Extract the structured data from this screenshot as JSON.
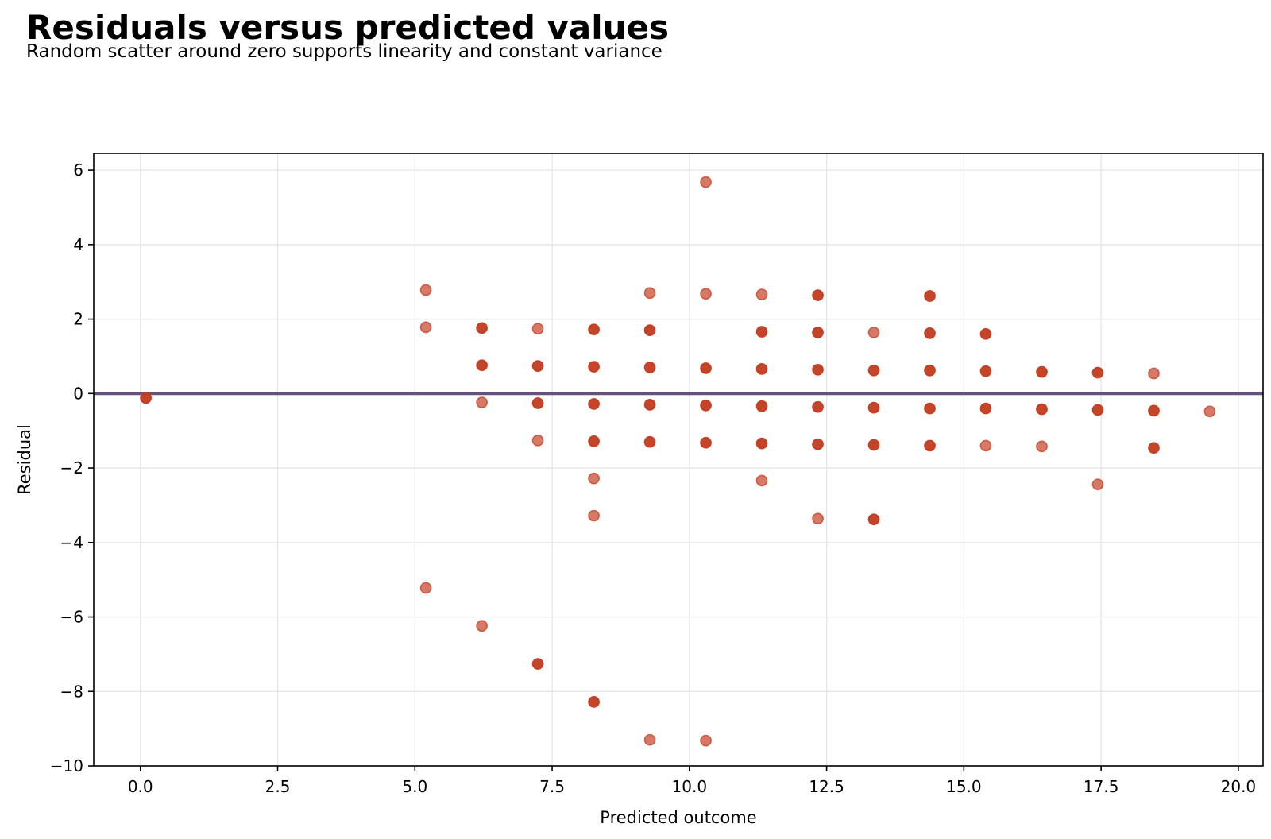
{
  "title": "Residuals versus predicted values",
  "subtitle": "Random scatter around zero supports linearity and constant variance",
  "colors": {
    "point": "#c23b1f",
    "reference_line": "#66507e",
    "grid": "#e5e5e5",
    "axes": "#000000"
  },
  "chart_data": {
    "type": "scatter",
    "xlabel": "Predicted outcome",
    "ylabel": "Residual",
    "xlim": [
      -0.85,
      20.45
    ],
    "ylim": [
      -10.0,
      6.45
    ],
    "x_ticks": [
      0.0,
      2.5,
      5.0,
      7.5,
      10.0,
      12.5,
      15.0,
      17.5,
      20.0
    ],
    "x_tick_labels": [
      "0.0",
      "2.5",
      "5.0",
      "7.5",
      "10.0",
      "12.5",
      "15.0",
      "17.5",
      "20.0"
    ],
    "y_ticks": [
      -10,
      -8,
      -6,
      -4,
      -2,
      0,
      2,
      4,
      6
    ],
    "y_tick_labels": [
      "−10",
      "−8",
      "−6",
      "−4",
      "−2",
      "0",
      "2",
      "4",
      "6"
    ],
    "grid": true,
    "reference_line": {
      "y": 0
    },
    "points": [
      {
        "x": 0.1,
        "y": -0.12,
        "heavy": true
      },
      {
        "x": 5.2,
        "y": 2.78,
        "heavy": false
      },
      {
        "x": 5.2,
        "y": 1.78,
        "heavy": false
      },
      {
        "x": 5.2,
        "y": -5.22,
        "heavy": false
      },
      {
        "x": 6.22,
        "y": 1.76,
        "heavy": true
      },
      {
        "x": 6.22,
        "y": 0.76,
        "heavy": true
      },
      {
        "x": 6.22,
        "y": -0.24,
        "heavy": false
      },
      {
        "x": 6.22,
        "y": -6.24,
        "heavy": false
      },
      {
        "x": 7.24,
        "y": 1.74,
        "heavy": false
      },
      {
        "x": 7.24,
        "y": 0.74,
        "heavy": true
      },
      {
        "x": 7.24,
        "y": -0.26,
        "heavy": true
      },
      {
        "x": 7.24,
        "y": -1.26,
        "heavy": false
      },
      {
        "x": 7.24,
        "y": -7.26,
        "heavy": true
      },
      {
        "x": 8.26,
        "y": 1.72,
        "heavy": true
      },
      {
        "x": 8.26,
        "y": 0.72,
        "heavy": true
      },
      {
        "x": 8.26,
        "y": -0.28,
        "heavy": true
      },
      {
        "x": 8.26,
        "y": -1.28,
        "heavy": true
      },
      {
        "x": 8.26,
        "y": -2.28,
        "heavy": false
      },
      {
        "x": 8.26,
        "y": -3.28,
        "heavy": false
      },
      {
        "x": 8.26,
        "y": -8.28,
        "heavy": true
      },
      {
        "x": 9.28,
        "y": 2.7,
        "heavy": false
      },
      {
        "x": 9.28,
        "y": 1.7,
        "heavy": true
      },
      {
        "x": 9.28,
        "y": 0.7,
        "heavy": true
      },
      {
        "x": 9.28,
        "y": -0.3,
        "heavy": true
      },
      {
        "x": 9.28,
        "y": -1.3,
        "heavy": true
      },
      {
        "x": 9.28,
        "y": -9.3,
        "heavy": false
      },
      {
        "x": 10.3,
        "y": 5.68,
        "heavy": false
      },
      {
        "x": 10.3,
        "y": 2.68,
        "heavy": false
      },
      {
        "x": 10.3,
        "y": 0.68,
        "heavy": true
      },
      {
        "x": 10.3,
        "y": -0.32,
        "heavy": true
      },
      {
        "x": 10.3,
        "y": -1.32,
        "heavy": true
      },
      {
        "x": 10.3,
        "y": -9.32,
        "heavy": false
      },
      {
        "x": 11.32,
        "y": 2.66,
        "heavy": false
      },
      {
        "x": 11.32,
        "y": 1.66,
        "heavy": true
      },
      {
        "x": 11.32,
        "y": 0.66,
        "heavy": true
      },
      {
        "x": 11.32,
        "y": -0.34,
        "heavy": true
      },
      {
        "x": 11.32,
        "y": -1.34,
        "heavy": true
      },
      {
        "x": 11.32,
        "y": -2.34,
        "heavy": false
      },
      {
        "x": 12.34,
        "y": 2.64,
        "heavy": true
      },
      {
        "x": 12.34,
        "y": 1.64,
        "heavy": true
      },
      {
        "x": 12.34,
        "y": 0.64,
        "heavy": true
      },
      {
        "x": 12.34,
        "y": -0.36,
        "heavy": true
      },
      {
        "x": 12.34,
        "y": -1.36,
        "heavy": true
      },
      {
        "x": 12.34,
        "y": -3.36,
        "heavy": false
      },
      {
        "x": 13.36,
        "y": 1.64,
        "heavy": false
      },
      {
        "x": 13.36,
        "y": 0.62,
        "heavy": true
      },
      {
        "x": 13.36,
        "y": -0.38,
        "heavy": true
      },
      {
        "x": 13.36,
        "y": -1.38,
        "heavy": true
      },
      {
        "x": 13.36,
        "y": -3.38,
        "heavy": true
      },
      {
        "x": 14.38,
        "y": 2.62,
        "heavy": true
      },
      {
        "x": 14.38,
        "y": 1.62,
        "heavy": true
      },
      {
        "x": 14.38,
        "y": 0.62,
        "heavy": true
      },
      {
        "x": 14.38,
        "y": -0.4,
        "heavy": true
      },
      {
        "x": 14.38,
        "y": -1.4,
        "heavy": true
      },
      {
        "x": 15.4,
        "y": 1.6,
        "heavy": true
      },
      {
        "x": 15.4,
        "y": 0.6,
        "heavy": true
      },
      {
        "x": 15.4,
        "y": -0.4,
        "heavy": true
      },
      {
        "x": 15.4,
        "y": -1.4,
        "heavy": false
      },
      {
        "x": 16.42,
        "y": 0.58,
        "heavy": true
      },
      {
        "x": 16.42,
        "y": -0.42,
        "heavy": true
      },
      {
        "x": 16.42,
        "y": -1.42,
        "heavy": false
      },
      {
        "x": 17.44,
        "y": 0.56,
        "heavy": true
      },
      {
        "x": 17.44,
        "y": -0.44,
        "heavy": true
      },
      {
        "x": 17.44,
        "y": -2.44,
        "heavy": false
      },
      {
        "x": 18.46,
        "y": 0.54,
        "heavy": false
      },
      {
        "x": 18.46,
        "y": -0.46,
        "heavy": true
      },
      {
        "x": 18.46,
        "y": -1.46,
        "heavy": true
      },
      {
        "x": 19.48,
        "y": -0.48,
        "heavy": false
      }
    ]
  }
}
